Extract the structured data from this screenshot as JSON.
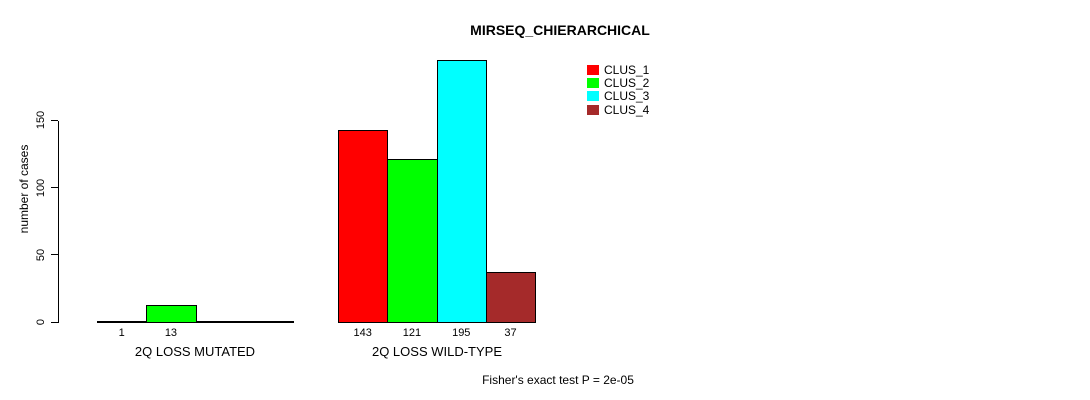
{
  "title": "MIRSEQ_CHIERARCHICAL",
  "footer": "Fisher's exact test P = 2e-05",
  "chart_data": {
    "type": "bar",
    "title": "MIRSEQ_CHIERARCHICAL",
    "xlabel": "",
    "ylabel": "number of cases",
    "ylim": [
      0,
      200
    ],
    "yticks": [
      0,
      50,
      100,
      150
    ],
    "grid": false,
    "legend_position": "top-right",
    "categories": [
      "2Q LOSS MUTATED",
      "2Q LOSS WILD-TYPE"
    ],
    "series": [
      {
        "name": "CLUS_1",
        "color": "#FF0000",
        "values": [
          1,
          143
        ]
      },
      {
        "name": "CLUS_2",
        "color": "#00FF00",
        "values": [
          13,
          121
        ]
      },
      {
        "name": "CLUS_3",
        "color": "#00FFFF",
        "values": [
          0,
          195
        ]
      },
      {
        "name": "CLUS_4",
        "color": "#A52A2A",
        "values": [
          0,
          37
        ]
      }
    ],
    "bar_labels": [
      [
        "1",
        "13",
        "",
        ""
      ],
      [
        "143",
        "121",
        "195",
        "37"
      ]
    ],
    "annotation": "Fisher's exact test P = 2e-05"
  }
}
